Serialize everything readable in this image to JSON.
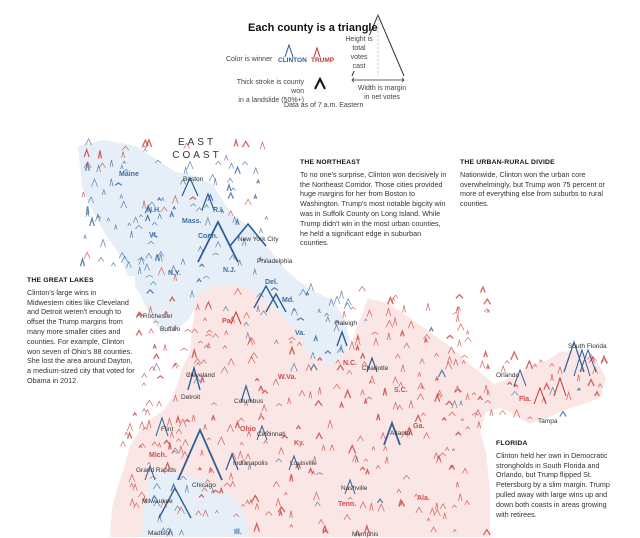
{
  "legend": {
    "title": "Each county is a triangle",
    "color_label": "Color is winner",
    "clinton": "CLINTON",
    "trump": "TRUMP",
    "stroke_label_1": "Thick stroke is county won",
    "stroke_label_2": "in a landslide (50%+)",
    "height_label_1": "Height is",
    "height_label_2": "total",
    "height_label_3": "votes cast",
    "width_label_1": "Width is margin",
    "width_label_2": "in net votes",
    "as_of": "Data as of 7 a.m. Eastern"
  },
  "region_label": [
    "EAST",
    "COAST"
  ],
  "states": [
    {
      "name": "Maine",
      "party": "d"
    },
    {
      "name": "N.H.",
      "party": "d"
    },
    {
      "name": "Vt.",
      "party": "d"
    },
    {
      "name": "Mass.",
      "party": "d"
    },
    {
      "name": "R.I.",
      "party": "d"
    },
    {
      "name": "Conn.",
      "party": "d"
    },
    {
      "name": "N.Y.",
      "party": "d"
    },
    {
      "name": "N.J.",
      "party": "d"
    },
    {
      "name": "Del.",
      "party": "d"
    },
    {
      "name": "Md.",
      "party": "d"
    },
    {
      "name": "Va.",
      "party": "d"
    },
    {
      "name": "Pa.",
      "party": "r"
    },
    {
      "name": "Ohio",
      "party": "r"
    },
    {
      "name": "W.Va.",
      "party": "r"
    },
    {
      "name": "N.C.",
      "party": "r"
    },
    {
      "name": "S.C.",
      "party": "r"
    },
    {
      "name": "Ga.",
      "party": "r"
    },
    {
      "name": "Fla.",
      "party": "r"
    },
    {
      "name": "Mich.",
      "party": "r"
    },
    {
      "name": "Ky.",
      "party": "r"
    },
    {
      "name": "Tenn.",
      "party": "r"
    },
    {
      "name": "Ala.",
      "party": "r"
    },
    {
      "name": "Ill.",
      "party": "d"
    }
  ],
  "cities": [
    "Boston",
    "New York City",
    "Philadelphia",
    "Rochester",
    "Buffalo",
    "Raleigh",
    "Charlotte",
    "Cleveland",
    "Columbus",
    "Detroit",
    "Flint",
    "Grand Rapids",
    "Cincinnati",
    "Indianapolis",
    "Louisville",
    "Chicago",
    "Milwaukee",
    "Nashville",
    "Atlanta",
    "Orlando",
    "Tampa",
    "South Florida",
    "Madison",
    "Memphis"
  ],
  "notes": {
    "northeast": {
      "title": "THE NORTHEAST",
      "text": "To no one's surprise, Clinton won decisively in the Northeast Corridor. Those cities provided huge margins for her from Boston to Washington. Trump's most notable bigcity win was in Suffolk County on Long Island. While Trump didn't win in the most urban counties, he held a significant edge in suburban counties."
    },
    "urban_rural": {
      "title": "THE URBAN-RURAL DIVIDE",
      "text": "Nationwide, Clinton won the urban core overwhelmingly, but Trump won 75 percent or more of everything else from suburbs to rural counties."
    },
    "great_lakes": {
      "title": "THE GREAT LAKES",
      "text": "Clinton's large wins in Midwestern cities like Cleveland and Detroit weren't enough to offset the Trump margins from many more smaller cities and counties. For example, Clinton won seven of Ohio's 88 counties. She lost the area around Dayton, a medium-sized city that voted for Obama in 2012."
    },
    "florida": {
      "title": "FLORIDA",
      "text": "Clinton held her own in Democratic strongholds in South Florida and Orlando, but Trump flipped St. Petersburg by a slim margin. Trump pulled away with large wins up and down both coasts in areas growing with retirees."
    }
  },
  "colors": {
    "dem": "#2c5e94",
    "rep": "#c7322e",
    "dem_fill": "#e3edf7",
    "rep_fill": "#fbe3e3"
  }
}
